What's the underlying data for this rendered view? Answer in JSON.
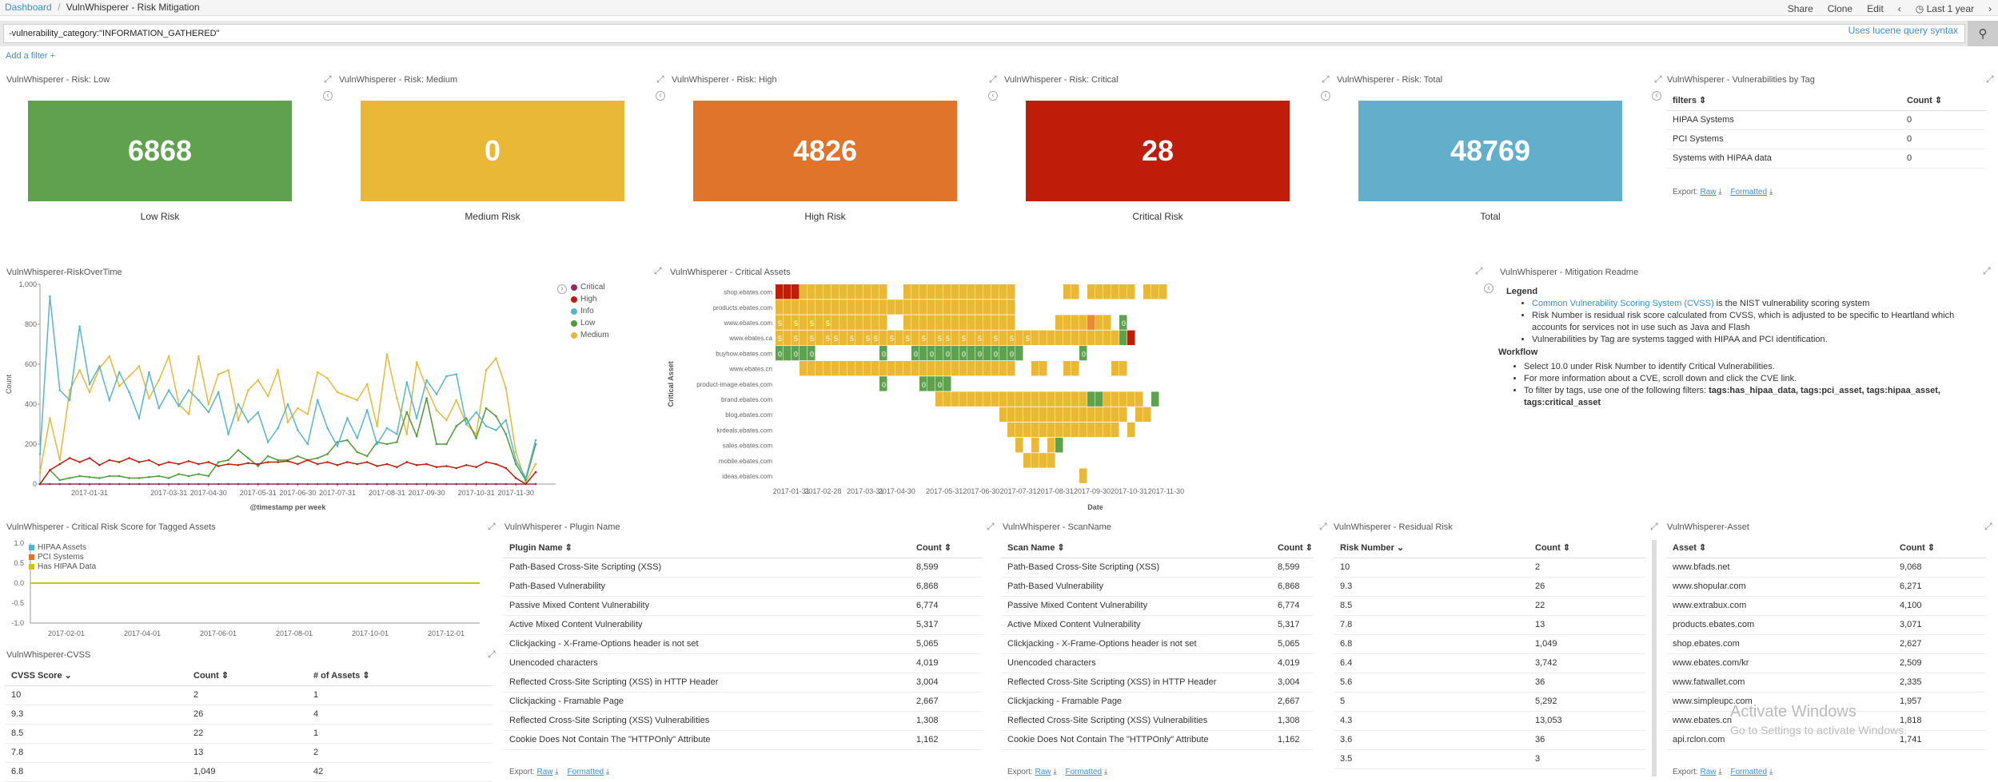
{
  "breadcrumb": {
    "root": "Dashboard",
    "sep": "/",
    "current": "VulnWhisperer - Risk Mitigation"
  },
  "top_actions": {
    "share": "Share",
    "clone": "Clone",
    "edit": "Edit",
    "time": "Last 1 year"
  },
  "query": {
    "value": "-vulnerability_category:\"INFORMATION_GATHERED\"",
    "hint": "Uses lucene query syntax"
  },
  "add_filter": "Add a filter +",
  "metrics": [
    {
      "title": "VulnWhisperer - Risk: Low",
      "value": "6868",
      "label": "Low Risk",
      "color": "#60a14f"
    },
    {
      "title": "VulnWhisperer - Risk: Medium",
      "value": "0",
      "label": "Medium Risk",
      "color": "#e8b836"
    },
    {
      "title": "VulnWhisperer - Risk: High",
      "value": "4826",
      "label": "High Risk",
      "color": "#e0742a"
    },
    {
      "title": "VulnWhisperer - Risk: Critical",
      "value": "28",
      "label": "Critical Risk",
      "color": "#bf1c0a"
    },
    {
      "title": "VulnWhisperer - Risk: Total",
      "value": "48769",
      "label": "Total",
      "color": "#63afcb"
    }
  ],
  "tag_table": {
    "title": "VulnWhisperer - Vulnerabilities by Tag",
    "headers": [
      "filters ⇕",
      "Count ⇕"
    ],
    "rows": [
      [
        "HIPAA Systems",
        "0"
      ],
      [
        "PCI Systems",
        "0"
      ],
      [
        "Systems with HIPAA data",
        "0"
      ]
    ],
    "export": "Export:",
    "raw": "Raw",
    "formatted": "Formatted"
  },
  "risk_over_time": {
    "title": "VulnWhisperer-RiskOverTime",
    "legend": [
      {
        "name": "Critical",
        "color": "#9c2a58"
      },
      {
        "name": "High",
        "color": "#bf1c0a"
      },
      {
        "name": "Info",
        "color": "#56b6cf"
      },
      {
        "name": "Low",
        "color": "#4f9a3b"
      },
      {
        "name": "Medium",
        "color": "#e8b836"
      }
    ]
  },
  "critical_assets": {
    "title": "VulnWhisperer - Critical Assets",
    "ylabel": "Critical Asset",
    "xlabel": "Date"
  },
  "readme": {
    "title": "VulnWhisperer - Mitigation Readme",
    "legend_heading": "Legend",
    "link": "Common Vulnerability Scoring System (CVSS)",
    "l1": " is the NIST vulnerability scoring system",
    "l2": "Risk Number is residual risk score calculated from CVSS, which is adjusted to be specific to Heartland which accounts for services not in use such as Java and Flash",
    "l3": "Vulnerabilities by Tag are systems tagged with HIPAA and PCI identification.",
    "workflow_heading": "Workflow",
    "w1": "Select 10.0 under Risk Number to identify Critical Vulnerabilities.",
    "w2": "For more information about a CVE, scroll down and click the CVE link.",
    "w3": "To filter by tags, use one of the following filters: ",
    "w3b": "tags:has_hipaa_data, tags:pci_asset, tags:hipaa_asset, tags:critical_asset"
  },
  "tagged_assets": {
    "title": "VulnWhisperer - Critical Risk Score for Tagged Assets",
    "legend": [
      {
        "name": "HIPAA Assets",
        "color": "#56b6cf"
      },
      {
        "name": "PCI Systems",
        "color": "#e0742a"
      },
      {
        "name": "Has HIPAA Data",
        "color": "#c9c22a"
      }
    ]
  },
  "cvss_table": {
    "title": "VulnWhisperer-CVSS",
    "headers": [
      "CVSS Score ⌄",
      "Count ⇕",
      "# of Assets ⇕"
    ],
    "rows": [
      [
        "10",
        "2",
        "1"
      ],
      [
        "9.3",
        "26",
        "4"
      ],
      [
        "8.5",
        "22",
        "1"
      ],
      [
        "7.8",
        "13",
        "2"
      ],
      [
        "6.8",
        "1,049",
        "42"
      ]
    ]
  },
  "plugin_table": {
    "title": "VulnWhisperer - Plugin Name",
    "headers": [
      "Plugin Name ⇕",
      "Count ⇕"
    ],
    "rows": [
      [
        "Path-Based Cross-Site Scripting (XSS)",
        "8,599"
      ],
      [
        "Path-Based Vulnerability",
        "6,868"
      ],
      [
        "Passive Mixed Content Vulnerability",
        "6,774"
      ],
      [
        "Active Mixed Content Vulnerability",
        "5,317"
      ],
      [
        "Clickjacking - X-Frame-Options header is not set",
        "5,065"
      ],
      [
        "Unencoded characters",
        "4,019"
      ],
      [
        "Reflected Cross-Site Scripting (XSS) in HTTP Header",
        "3,004"
      ],
      [
        "Clickjacking - Framable Page",
        "2,667"
      ],
      [
        "Reflected Cross-Site Scripting (XSS) Vulnerabilities",
        "1,308"
      ],
      [
        "Cookie Does Not Contain The \"HTTPOnly\" Attribute",
        "1,162"
      ]
    ],
    "export": "Export:",
    "raw": "Raw",
    "formatted": "Formatted"
  },
  "scan_table": {
    "title": "VulnWhisperer - ScanName",
    "headers": [
      "Scan Name ⇕",
      "Count ⇕"
    ],
    "rows": [
      [
        "Path-Based Cross-Site Scripting (XSS)",
        "8,599"
      ],
      [
        "Path-Based Vulnerability",
        "6,868"
      ],
      [
        "Passive Mixed Content Vulnerability",
        "6,774"
      ],
      [
        "Active Mixed Content Vulnerability",
        "5,317"
      ],
      [
        "Clickjacking - X-Frame-Options header is not set",
        "5,065"
      ],
      [
        "Unencoded characters",
        "4,019"
      ],
      [
        "Reflected Cross-Site Scripting (XSS) in HTTP Header",
        "3,004"
      ],
      [
        "Clickjacking - Framable Page",
        "2,667"
      ],
      [
        "Reflected Cross-Site Scripting (XSS) Vulnerabilities",
        "1,308"
      ],
      [
        "Cookie Does Not Contain The \"HTTPOnly\" Attribute",
        "1,162"
      ]
    ],
    "export": "Export:",
    "raw": "Raw",
    "formatted": "Formatted"
  },
  "residual_table": {
    "title": "VulnWhisperer - Residual Risk",
    "headers": [
      "Risk Number ⌄",
      "Count ⇕"
    ],
    "rows": [
      [
        "10",
        "2"
      ],
      [
        "9.3",
        "26"
      ],
      [
        "8.5",
        "22"
      ],
      [
        "7.8",
        "13"
      ],
      [
        "6.8",
        "1,049"
      ],
      [
        "6.4",
        "3,742"
      ],
      [
        "5.6",
        "36"
      ],
      [
        "5",
        "5,292"
      ],
      [
        "4.3",
        "13,053"
      ],
      [
        "3.6",
        "36"
      ],
      [
        "3.5",
        "3"
      ]
    ]
  },
  "asset_table": {
    "title": "VulnWhisperer-Asset",
    "headers": [
      "Asset ⇕",
      "Count ⇕"
    ],
    "rows": [
      [
        "www.bfads.net",
        "9,068"
      ],
      [
        "www.shopular.com",
        "6,271"
      ],
      [
        "www.extrabux.com",
        "4,100"
      ],
      [
        "products.ebates.com",
        "3,071"
      ],
      [
        "shop.ebates.com",
        "2,627"
      ],
      [
        "www.ebates.com/kr",
        "2,509"
      ],
      [
        "www.fatwallet.com",
        "2,335"
      ],
      [
        "www.simpleupc.com",
        "1,957"
      ],
      [
        "www.ebates.cn",
        "1,818"
      ],
      [
        "api.rclon.com",
        "1,741"
      ]
    ],
    "export": "Export:",
    "raw": "Raw",
    "formatted": "Formatted"
  },
  "watermark": {
    "line1": "Activate Windows",
    "line2": "Go to Settings to activate Windows."
  },
  "chart_data": [
    {
      "type": "line",
      "title": "",
      "xlabel": "@timestamp per week",
      "ylabel": "Count",
      "ylim": [
        0,
        1000
      ],
      "yticks": [
        "1,000",
        "800",
        "600",
        "400",
        "200",
        "0"
      ],
      "xticks": [
        "2017-01-31",
        "2017-03-31",
        "2017-04-30",
        "2017-05-31",
        "2017-06-30",
        "2017-07-31",
        "2017-08-31",
        "2017-09-30",
        "2017-10-31",
        "2017-11-30"
      ],
      "series": [
        {
          "name": "Critical",
          "values": [
            0,
            0,
            0,
            0,
            0,
            0,
            0,
            0,
            0,
            0,
            0,
            0,
            0,
            0,
            0,
            0,
            0,
            0,
            0,
            0,
            0,
            0,
            0,
            0,
            0,
            0,
            0,
            0,
            0,
            0,
            0,
            0,
            0,
            0,
            0,
            0,
            0,
            0,
            0,
            0,
            0,
            0,
            0,
            0,
            0,
            0,
            0,
            0,
            0,
            0,
            0
          ]
        },
        {
          "name": "High",
          "values": [
            0,
            70,
            100,
            130,
            110,
            130,
            95,
            120,
            110,
            130,
            110,
            120,
            95,
            110,
            100,
            115,
            100,
            110,
            90,
            100,
            95,
            105,
            100,
            110,
            110,
            115,
            100,
            120,
            100,
            110,
            95,
            110,
            100,
            110,
            90,
            100,
            85,
            110,
            95,
            100,
            85,
            90,
            80,
            95,
            85,
            110,
            100,
            80,
            30,
            0,
            60
          ]
        },
        {
          "name": "Info",
          "values": [
            150,
            940,
            470,
            420,
            790,
            500,
            590,
            420,
            560,
            460,
            330,
            560,
            380,
            470,
            390,
            470,
            420,
            360,
            460,
            250,
            400,
            310,
            360,
            210,
            280,
            400,
            270,
            200,
            420,
            280,
            190,
            330,
            230,
            370,
            200,
            280,
            250,
            510,
            330,
            520,
            450,
            540,
            550,
            300,
            360,
            290,
            270,
            320,
            120,
            30,
            220
          ]
        },
        {
          "name": "Low",
          "values": [
            0,
            70,
            20,
            30,
            40,
            35,
            30,
            40,
            40,
            30,
            30,
            35,
            40,
            30,
            50,
            40,
            50,
            40,
            110,
            120,
            170,
            130,
            90,
            140,
            120,
            120,
            140,
            120,
            130,
            150,
            210,
            220,
            160,
            140,
            210,
            200,
            210,
            360,
            240,
            430,
            200,
            200,
            290,
            330,
            230,
            380,
            340,
            250,
            100,
            20,
            200
          ]
        },
        {
          "name": "Medium",
          "values": [
            60,
            330,
            120,
            470,
            570,
            460,
            580,
            640,
            490,
            540,
            590,
            430,
            520,
            640,
            400,
            350,
            640,
            400,
            550,
            570,
            320,
            470,
            520,
            440,
            570,
            310,
            380,
            350,
            560,
            530,
            460,
            440,
            420,
            500,
            290,
            650,
            430,
            250,
            610,
            480,
            370,
            320,
            420,
            300,
            250,
            570,
            630,
            480,
            160,
            10,
            100
          ]
        }
      ]
    },
    {
      "type": "heatmap",
      "title": "",
      "xlabel": "Date",
      "ylabel": "Critical Asset",
      "categories": [
        "shop.ebates.com",
        "products.ebates.com",
        "www.ebates.com",
        "www.ebates.ca",
        "buyhow.ebates.com",
        "www.ebates.cn",
        "product-image.ebates.com",
        "brand.ebates.com",
        "blog.ebates.com",
        "krdeals.ebates.com",
        "sales.ebates.com",
        "mobile.ebates.com",
        "ideas.ebates.com"
      ],
      "xticks": [
        "2017-01-31",
        "2017-02-28",
        "2017-03-31",
        "2017-04-30",
        "2017-05-31",
        "2017-06-30",
        "2017-07-31",
        "2017-08-31",
        "2017-09-30",
        "2017-10-31",
        "2017-11-30"
      ]
    },
    {
      "type": "line",
      "title": "",
      "xlabel": "",
      "ylabel": "",
      "ylim": [
        -1.0,
        1.0
      ],
      "yticks": [
        "1.0",
        "0.5",
        "0.0",
        "-0.5",
        "-1.0"
      ],
      "xticks": [
        "2017-02-01",
        "2017-04-01",
        "2017-06-01",
        "2017-08-01",
        "2017-10-01",
        "2017-12-01"
      ],
      "series": [
        {
          "name": "HIPAA Assets",
          "values": [
            0,
            0
          ]
        },
        {
          "name": "PCI Systems",
          "values": [
            0,
            0
          ]
        },
        {
          "name": "Has HIPAA Data",
          "values": [
            0,
            0
          ]
        }
      ]
    }
  ]
}
